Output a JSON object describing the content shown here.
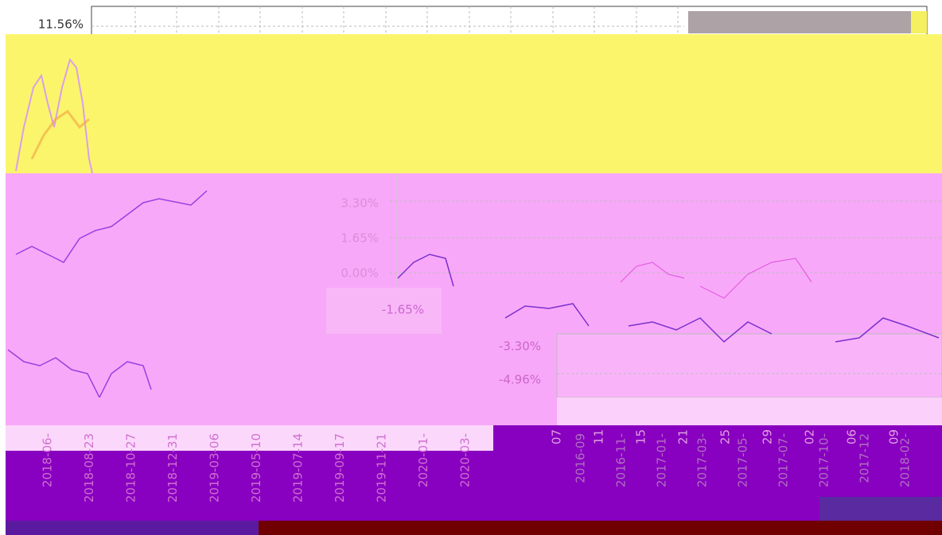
{
  "top_axis": {
    "label": "11.56%"
  },
  "middle_axis": {
    "labels": [
      "3.30%",
      "1.65%",
      "0.00%",
      "-1.65%",
      "-3.30%",
      "-4.96%"
    ]
  },
  "left_dates": [
    "2018-06-",
    "2018-08-23",
    "2018-10-27",
    "2018-12-31",
    "2019-03-06",
    "2019-05-10",
    "2019-07-14",
    "2019-09-17",
    "2019-11-21",
    "2020-01-",
    "2020-03-"
  ],
  "right_days": [
    "07",
    "11",
    "15",
    "21",
    "25",
    "29",
    "02",
    "06",
    "09"
  ],
  "right_dates": [
    "2016-09",
    "2016-11-",
    "2017-01-",
    "2017-03-",
    "2017-05-",
    "2017-07-",
    "2017-10-",
    "2017-12",
    "2018-02-"
  ]
}
